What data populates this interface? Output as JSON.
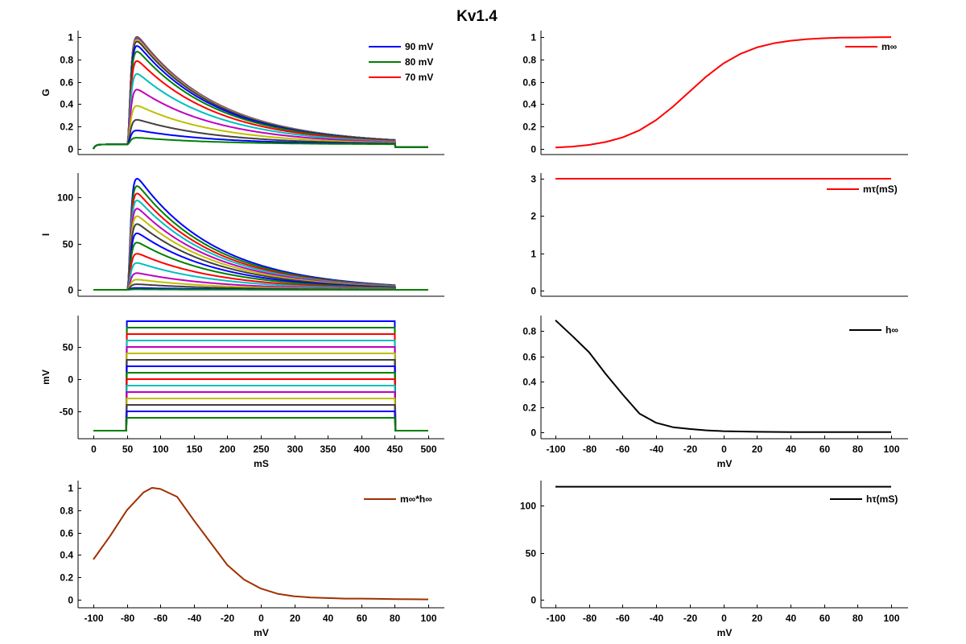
{
  "figure": {
    "title": "Kv1.4"
  },
  "protocol": {
    "holding_mV": -80,
    "step_start_ms": 50,
    "step_end_ms": 450,
    "tau_m_ms": 3,
    "tau_h_ms": 120,
    "step_voltages_mV": [
      90,
      80,
      70,
      60,
      50,
      40,
      30,
      20,
      10,
      0,
      -10,
      -20,
      -30,
      -40,
      -50,
      -60
    ],
    "colors": [
      "#0000ff",
      "#008000",
      "#ff0000",
      "#00bfbf",
      "#bf00bf",
      "#bfbf00",
      "#404040"
    ]
  },
  "chart_data": [
    {
      "panel": "G",
      "type": "line",
      "ylabel": "G",
      "xlabel": "",
      "xlim": [
        0,
        500
      ],
      "ylim": [
        0,
        1
      ],
      "yticks": [
        0,
        0.2,
        0.4,
        0.6,
        0.8,
        1
      ],
      "xticks": [],
      "legend": [
        "90 mV",
        "80 mV",
        "70 mV"
      ],
      "legend_location": "top-right",
      "peak": [
        1.0,
        0.998,
        0.995,
        0.99,
        0.985,
        0.975,
        0.96,
        0.92,
        0.87,
        0.785,
        0.67,
        0.53,
        0.385,
        0.26,
        0.165,
        0.1
      ],
      "baseline_before": 0.04,
      "baseline_after": 0.015
    },
    {
      "panel": "I",
      "type": "line",
      "ylabel": "I",
      "xlabel": "",
      "xlim": [
        0,
        500
      ],
      "ylim": [
        0,
        120
      ],
      "yticks": [
        0,
        50,
        100
      ],
      "xticks": [],
      "peak": [
        120,
        112,
        104,
        96.5,
        87.6,
        79.5,
        71,
        61,
        51,
        39,
        29,
        18,
        11,
        6,
        2,
        0.5
      ]
    },
    {
      "panel": "V",
      "type": "line",
      "ylabel": "mV",
      "xlabel": "mS",
      "xlim": [
        0,
        500
      ],
      "ylim": [
        -80,
        90
      ],
      "yticks": [
        -50,
        0,
        50
      ],
      "xticks": [
        0,
        50,
        100,
        150,
        200,
        250,
        300,
        350,
        400,
        450,
        500
      ]
    },
    {
      "panel": "minf_hinf",
      "type": "line",
      "ylabel": "",
      "xlabel": "mV",
      "xlim": [
        -100,
        100
      ],
      "ylim": [
        0,
        1
      ],
      "yticks": [
        0,
        0.2,
        0.4,
        0.6,
        0.8,
        1
      ],
      "xticks": [
        -100,
        -80,
        -60,
        -40,
        -20,
        0,
        20,
        40,
        60,
        80,
        100
      ],
      "legend": [
        "m∞*h∞"
      ],
      "legend_location": "top-right",
      "color": "#a03000",
      "x": [
        -100,
        -90,
        -80,
        -70,
        -65,
        -60,
        -50,
        -40,
        -30,
        -20,
        -10,
        0,
        10,
        20,
        30,
        40,
        50,
        60,
        70,
        80,
        90,
        100
      ],
      "y": [
        0.36,
        0.57,
        0.8,
        0.96,
        1.0,
        0.99,
        0.92,
        0.71,
        0.51,
        0.31,
        0.18,
        0.1,
        0.053,
        0.03,
        0.02,
        0.015,
        0.01,
        0.01,
        0.008,
        0.005,
        0.004,
        0.003
      ]
    },
    {
      "panel": "minf",
      "type": "line",
      "ylabel": "",
      "xlabel": "",
      "xlim": [
        -100,
        100
      ],
      "ylim": [
        0,
        1
      ],
      "yticks": [
        0,
        0.2,
        0.4,
        0.6,
        0.8,
        1
      ],
      "xticks": [],
      "legend": [
        "m∞"
      ],
      "legend_location": "top-right",
      "color": "#ff0000",
      "x": [
        -100,
        -90,
        -80,
        -70,
        -60,
        -50,
        -40,
        -30,
        -20,
        -10,
        0,
        10,
        20,
        30,
        40,
        50,
        60,
        70,
        80,
        90,
        100
      ],
      "y": [
        0.012,
        0.021,
        0.036,
        0.062,
        0.103,
        0.166,
        0.258,
        0.378,
        0.514,
        0.648,
        0.763,
        0.848,
        0.907,
        0.944,
        0.967,
        0.981,
        0.989,
        0.994,
        0.996,
        0.998,
        0.999
      ]
    },
    {
      "panel": "mtau",
      "type": "line",
      "ylabel": "",
      "xlabel": "",
      "xlim": [
        -100,
        100
      ],
      "ylim": [
        0,
        3
      ],
      "yticks": [
        0,
        1,
        2,
        3
      ],
      "xticks": [],
      "legend": [
        "mτ(mS)"
      ],
      "legend_location": "top-right",
      "color": "#ff0000",
      "x": [
        -100,
        100
      ],
      "y": [
        3,
        3
      ]
    },
    {
      "panel": "hinf",
      "type": "line",
      "ylabel": "",
      "xlabel": "mV",
      "xlim": [
        -100,
        100
      ],
      "ylim": [
        0,
        0.88
      ],
      "yticks": [
        0,
        0.2,
        0.4,
        0.6,
        0.8
      ],
      "xticks": [
        -100,
        -80,
        -60,
        -40,
        -20,
        0,
        20,
        40,
        60,
        80,
        100
      ],
      "legend": [
        "h∞"
      ],
      "legend_location": "top-right",
      "color": "#000000",
      "x": [
        -100,
        -90,
        -80,
        -70,
        -60,
        -50,
        -40,
        -30,
        -20,
        -10,
        0,
        20,
        40,
        60,
        80,
        100
      ],
      "y": [
        0.884,
        0.76,
        0.632,
        0.46,
        0.299,
        0.148,
        0.075,
        0.04,
        0.026,
        0.015,
        0.009,
        0.004,
        0.002,
        0.001,
        0.001,
        0.001
      ]
    },
    {
      "panel": "htau",
      "type": "line",
      "ylabel": "",
      "xlabel": "mV",
      "xlim": [
        -100,
        100
      ],
      "ylim": [
        0,
        120
      ],
      "yticks": [
        0,
        50,
        100
      ],
      "xticks": [
        -100,
        -80,
        -60,
        -40,
        -20,
        0,
        20,
        40,
        60,
        80,
        100
      ],
      "legend": [
        "hτ(mS)"
      ],
      "legend_location": "top-right",
      "color": "#000000",
      "x": [
        -100,
        100
      ],
      "y": [
        120,
        120
      ]
    }
  ]
}
